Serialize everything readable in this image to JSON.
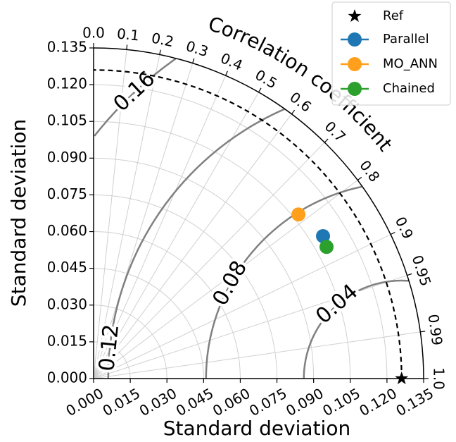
{
  "chart_data": {
    "type": "taylor",
    "xlabel": "Standard deviation",
    "ylabel": "Standard deviation",
    "corr_label": "Correlation coefficient",
    "rlim": [
      0,
      0.135
    ],
    "xticks": [
      {
        "value": 0,
        "label": "0.000"
      },
      {
        "value": 0.015,
        "label": "0.015"
      },
      {
        "value": 0.03,
        "label": "0.030"
      },
      {
        "value": 0.045,
        "label": "0.045"
      },
      {
        "value": 0.06,
        "label": "0.060"
      },
      {
        "value": 0.075,
        "label": "0.075"
      },
      {
        "value": 0.09,
        "label": "0.090"
      },
      {
        "value": 0.105,
        "label": "0.105"
      },
      {
        "value": 0.12,
        "label": "0.120"
      },
      {
        "value": 0.135,
        "label": "0.135"
      }
    ],
    "yticks": [
      {
        "value": 0,
        "label": "0.000"
      },
      {
        "value": 0.015,
        "label": "0.015"
      },
      {
        "value": 0.03,
        "label": "0.030"
      },
      {
        "value": 0.045,
        "label": "0.045"
      },
      {
        "value": 0.06,
        "label": "0.060"
      },
      {
        "value": 0.075,
        "label": "0.075"
      },
      {
        "value": 0.09,
        "label": "0.090"
      },
      {
        "value": 0.105,
        "label": "0.105"
      },
      {
        "value": 0.12,
        "label": "0.120"
      },
      {
        "value": 0.135,
        "label": "0.135"
      }
    ],
    "corr_ticks": [
      {
        "value": 0,
        "label": "0.0"
      },
      0.1,
      0.2,
      0.3,
      0.4,
      0.5,
      0.6,
      0.7,
      0.8,
      0.9,
      0.95,
      0.99,
      {
        "value": 1,
        "label": "1.0"
      }
    ],
    "rms_levels": [
      0.04,
      0.08,
      0.12,
      0.16
    ],
    "grid": true,
    "ref": {
      "name": "Ref",
      "std": 0.126,
      "corr": 1,
      "color": "#000000"
    },
    "series": [
      {
        "name": "Parallel",
        "color": "#1f77b4",
        "std": 0.1104,
        "corr": 0.85
      },
      {
        "name": "MO_ANN",
        "color": "#ff9f1c",
        "std": 0.1073,
        "corr": 0.781
      },
      {
        "name": "Chained",
        "color": "#2ca02c",
        "std": 0.1094,
        "corr": 0.871
      }
    ],
    "legend": "upper right"
  }
}
